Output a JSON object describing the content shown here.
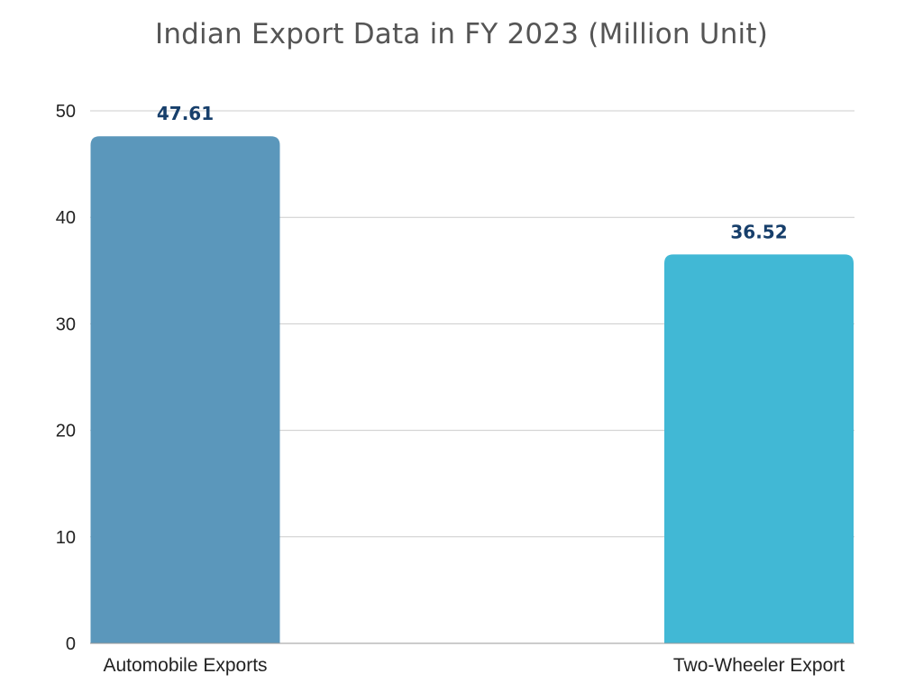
{
  "chart_data": {
    "type": "bar",
    "title": "Indian Export Data in FY 2023 (Million Unit)",
    "categories": [
      "Automobile Exports",
      "Two-Wheeler Export"
    ],
    "values": [
      47.61,
      36.52
    ],
    "value_labels": [
      "47.61",
      "36.52"
    ],
    "colors": [
      "#5b97bb",
      "#41b8d5"
    ],
    "label_color": "#173f6b",
    "xlabel": "",
    "ylabel": "",
    "ylim": [
      0,
      50
    ],
    "yticks": [
      0,
      10,
      20,
      30,
      40,
      50
    ],
    "grid": true,
    "legend": "none"
  }
}
